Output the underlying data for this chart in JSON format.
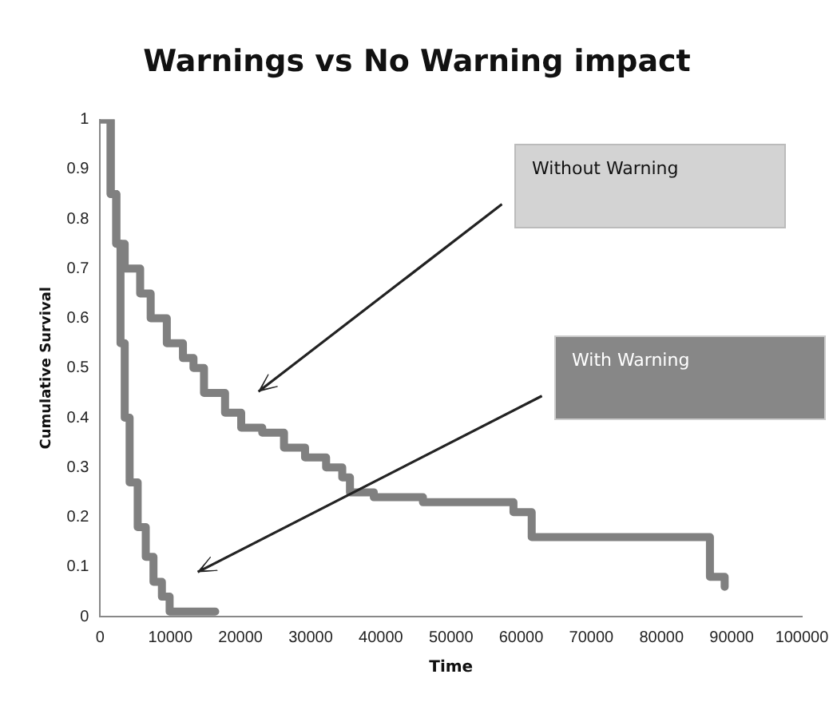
{
  "chart_data": {
    "type": "step",
    "title": "Warnings vs No Warning impact",
    "xlabel": "Time",
    "ylabel": "Cumulative Survival",
    "xlim": [
      0,
      100000
    ],
    "xticks": [
      0,
      10000,
      20000,
      30000,
      40000,
      50000,
      60000,
      70000,
      80000,
      90000,
      100000
    ],
    "ylim": [
      0,
      1
    ],
    "yticks": [
      0,
      0.1,
      0.2,
      0.3,
      0.4,
      0.5,
      0.6,
      0.7,
      0.8,
      0.9,
      1
    ],
    "grid": false,
    "legend": false,
    "marker": "none",
    "line_style": "solid",
    "series": [
      {
        "color": "#808080",
        "x": [
          0,
          1500,
          2300,
          3500,
          5700,
          7200,
          9500,
          11800,
          13300,
          14800,
          17800,
          20100,
          23100,
          26200,
          29200,
          32200,
          34500,
          35600,
          39000,
          46000,
          58900,
          61500,
          86900,
          89000
        ],
        "values": [
          1,
          0.85,
          0.75,
          0.7,
          0.65,
          0.6,
          0.55,
          0.52,
          0.5,
          0.45,
          0.41,
          0.38,
          0.37,
          0.34,
          0.32,
          0.3,
          0.28,
          0.25,
          0.24,
          0.23,
          0.21,
          0.16,
          0.08,
          0.06
        ]
      },
      {
        "color": "#808080",
        "x": [
          0,
          1500,
          2300,
          2900,
          3500,
          4200,
          5350,
          6500,
          7600,
          8800,
          9900,
          16400
        ],
        "values": [
          1,
          0.85,
          0.75,
          0.55,
          0.4,
          0.27,
          0.18,
          0.12,
          0.07,
          0.04,
          0.01,
          0.01
        ]
      }
    ],
    "annotations": [
      "Without Warning",
      "With Warning"
    ]
  }
}
